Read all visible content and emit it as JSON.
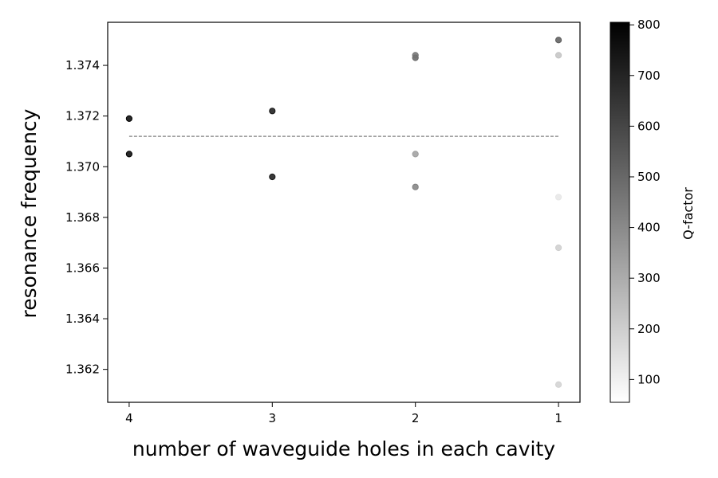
{
  "chart_data": {
    "type": "scatter",
    "title": "",
    "xlabel": "number of waveguide holes in each cavity",
    "ylabel": "resonance frequency",
    "x_ticks": [
      4,
      3,
      2,
      1
    ],
    "y_ticks": [
      1.362,
      1.364,
      1.366,
      1.368,
      1.37,
      1.372,
      1.374
    ],
    "xlim": [
      4.15,
      0.85
    ],
    "ylim": [
      1.3607,
      1.3757
    ],
    "x_inverted": true,
    "grid": false,
    "reference_line": {
      "y": 1.3712,
      "x_range": [
        4,
        1
      ],
      "style": "dashed",
      "color": "#808080"
    },
    "points": [
      {
        "x": 4,
        "y": 1.3719,
        "q": 800
      },
      {
        "x": 4,
        "y": 1.3705,
        "q": 800
      },
      {
        "x": 3,
        "y": 1.3722,
        "q": 740
      },
      {
        "x": 3,
        "y": 1.3696,
        "q": 740
      },
      {
        "x": 2,
        "y": 1.3743,
        "q": 510
      },
      {
        "x": 2,
        "y": 1.3744,
        "q": 470
      },
      {
        "x": 2,
        "y": 1.3705,
        "q": 340
      },
      {
        "x": 2,
        "y": 1.3692,
        "q": 430
      },
      {
        "x": 1,
        "y": 1.375,
        "q": 540
      },
      {
        "x": 1,
        "y": 1.3744,
        "q": 230
      },
      {
        "x": 1,
        "y": 1.3688,
        "q": 130
      },
      {
        "x": 1,
        "y": 1.3668,
        "q": 200
      },
      {
        "x": 1,
        "y": 1.3614,
        "q": 190
      }
    ],
    "colorbar": {
      "label": "Q-factor",
      "range": [
        55,
        805
      ],
      "ticks": [
        100,
        200,
        300,
        400,
        500,
        600,
        700,
        800
      ],
      "colormap": "Greys"
    }
  }
}
